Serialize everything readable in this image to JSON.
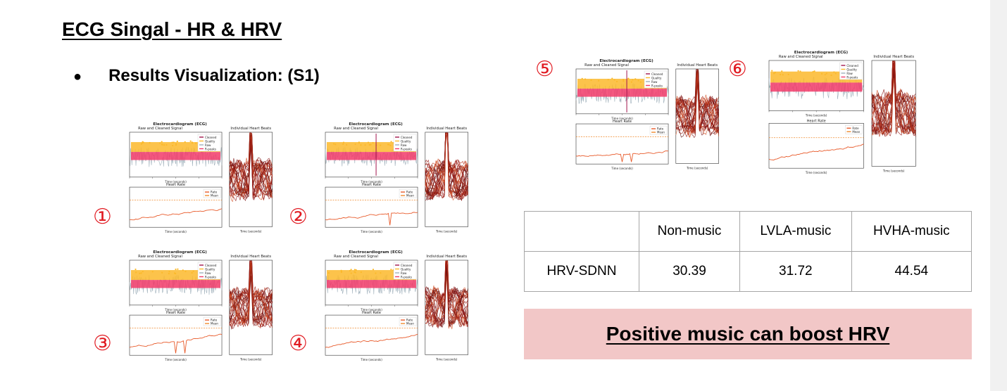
{
  "slide": {
    "title": "ECG Singal - HR & HRV",
    "bullet": "Results Visualization: (S1)"
  },
  "figures": [
    {
      "marker": "①",
      "variant": "A"
    },
    {
      "marker": "②",
      "variant": "B"
    },
    {
      "marker": "③",
      "variant": "C"
    },
    {
      "marker": "④",
      "variant": "D"
    },
    {
      "marker": "⑤",
      "variant": "E"
    },
    {
      "marker": "⑥",
      "variant": "F"
    }
  ],
  "figure_text": {
    "suptitle": "Electrocardiogram (ECG)",
    "signal_title": "Raw and Cleaned Signal",
    "beats_title": "Individual Heart Beats",
    "rate_title": "Heart Rate",
    "time_label": "Time (seconds)",
    "legend_signal": [
      "Cleaned",
      "Quality",
      "Raw",
      "R-peaks"
    ],
    "legend_rate": [
      "Rate",
      "Mean"
    ]
  },
  "colors": {
    "cleaned": "#a3154d",
    "quality": "#fbb92b",
    "raw": "#9fb0bb",
    "rpeaks": "#f23b6a",
    "rate": "#e85a2a",
    "mean": "#f08a2e",
    "marker": "#e11b22",
    "banner": "#f2c7c7"
  },
  "table": {
    "header": [
      "",
      "Non-music",
      "LVLA-music",
      "HVHA-music"
    ],
    "rows": [
      [
        "HRV-SDNN",
        "30.39",
        "31.72",
        "44.54"
      ]
    ]
  },
  "banner": "Positive music can boost HRV"
}
